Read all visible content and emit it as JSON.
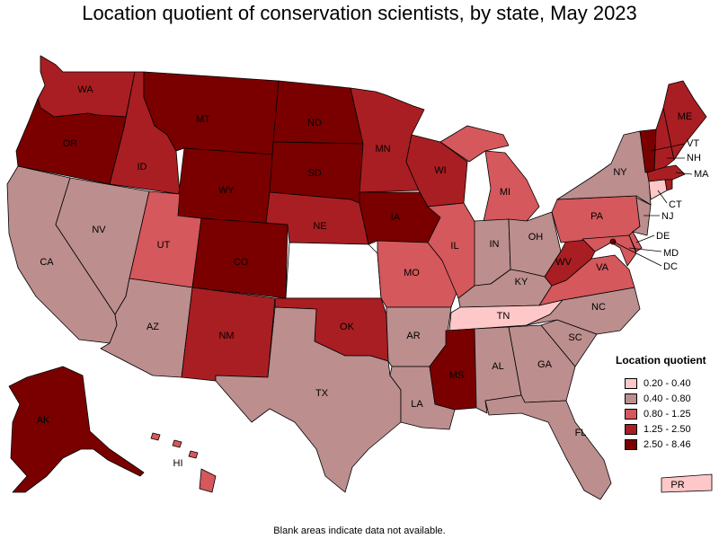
{
  "title": "Location quotient of conservation scientists, by state, May 2023",
  "footnote": "Blank areas indicate data not available.",
  "legend": {
    "title": "Location quotient",
    "items": [
      {
        "label": "0.20 - 0.40",
        "color": "#ffc8c8"
      },
      {
        "label": "0.40 - 0.80",
        "color": "#bc8e8e"
      },
      {
        "label": "0.80 - 1.25",
        "color": "#d4585c"
      },
      {
        "label": "1.25 - 2.50",
        "color": "#a91e22"
      },
      {
        "label": "2.50 - 8.46",
        "color": "#7a0000"
      }
    ]
  },
  "states": {
    "WA": {
      "label": "WA",
      "class": 3
    },
    "OR": {
      "label": "OR",
      "class": 4
    },
    "CA": {
      "label": "CA",
      "class": 1
    },
    "ID": {
      "label": "ID",
      "class": 3
    },
    "NV": {
      "label": "NV",
      "class": 1
    },
    "MT": {
      "label": "MT",
      "class": 4
    },
    "WY": {
      "label": "WY",
      "class": 4
    },
    "UT": {
      "label": "UT",
      "class": 2
    },
    "AZ": {
      "label": "AZ",
      "class": 1
    },
    "CO": {
      "label": "CO",
      "class": 4
    },
    "NM": {
      "label": "NM",
      "class": 3
    },
    "ND": {
      "label": "ND",
      "class": 4
    },
    "SD": {
      "label": "SD",
      "class": 4
    },
    "NE": {
      "label": "NE",
      "class": 3
    },
    "KS": {
      "label": "",
      "class": -1
    },
    "OK": {
      "label": "OK",
      "class": 3
    },
    "TX": {
      "label": "TX",
      "class": 1
    },
    "MN": {
      "label": "MN",
      "class": 3
    },
    "IA": {
      "label": "IA",
      "class": 4
    },
    "MO": {
      "label": "MO",
      "class": 2
    },
    "AR": {
      "label": "AR",
      "class": 1
    },
    "LA": {
      "label": "LA",
      "class": 1
    },
    "WI": {
      "label": "WI",
      "class": 3
    },
    "IL": {
      "label": "IL",
      "class": 2
    },
    "MI": {
      "label": "MI",
      "class": 2
    },
    "IN": {
      "label": "IN",
      "class": 1
    },
    "OH": {
      "label": "OH",
      "class": 1
    },
    "KY": {
      "label": "KY",
      "class": 1
    },
    "TN": {
      "label": "TN",
      "class": 0
    },
    "MS": {
      "label": "MS",
      "class": 4
    },
    "AL": {
      "label": "AL",
      "class": 1
    },
    "GA": {
      "label": "GA",
      "class": 1
    },
    "FL": {
      "label": "FL",
      "class": 1
    },
    "SC": {
      "label": "SC",
      "class": 1
    },
    "NC": {
      "label": "NC",
      "class": 1
    },
    "VA": {
      "label": "VA",
      "class": 2
    },
    "WV": {
      "label": "WV",
      "class": 3
    },
    "PA": {
      "label": "PA",
      "class": 2
    },
    "NY": {
      "label": "NY",
      "class": 1
    },
    "VT": {
      "label": "VT",
      "class": 4
    },
    "NH": {
      "label": "NH",
      "class": 3
    },
    "ME": {
      "label": "ME",
      "class": 3
    },
    "MA": {
      "label": "MA",
      "class": 3
    },
    "CT": {
      "label": "CT",
      "class": 0
    },
    "RI": {
      "label": "",
      "class": 3
    },
    "NJ": {
      "label": "NJ",
      "class": 1
    },
    "DE": {
      "label": "DE",
      "class": 2
    },
    "MD": {
      "label": "MD",
      "class": 2
    },
    "DC": {
      "label": "DC",
      "class": 4
    },
    "AK": {
      "label": "AK",
      "class": 4
    },
    "HI": {
      "label": "HI",
      "class": 2
    },
    "PR": {
      "label": "PR",
      "class": 0
    }
  }
}
